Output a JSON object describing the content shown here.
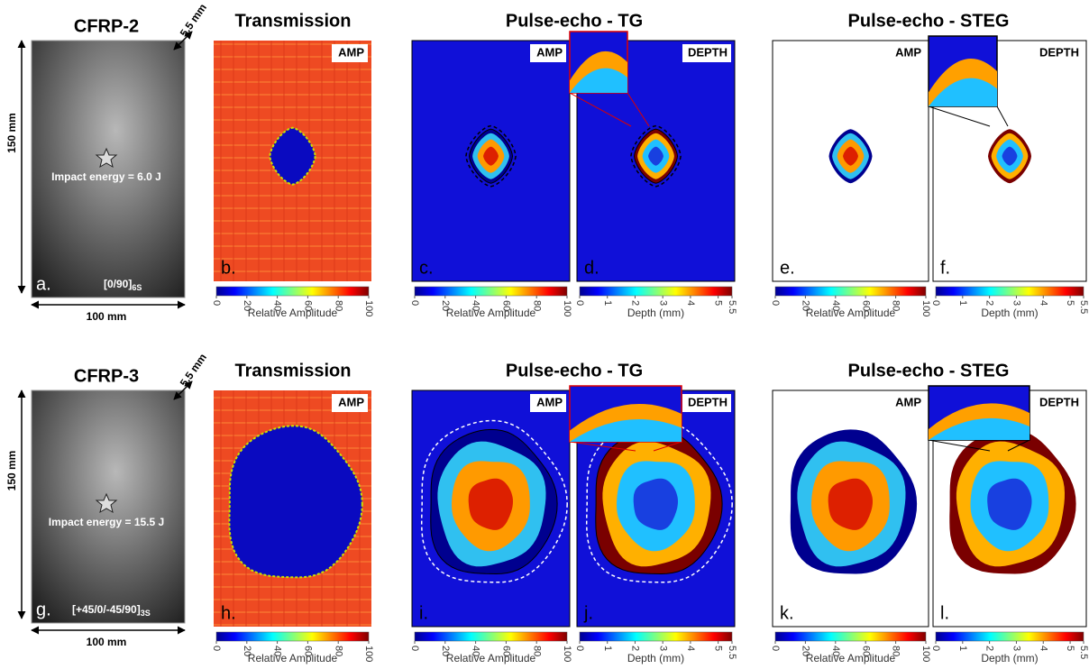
{
  "rows": [
    {
      "sample": "CFRP-2",
      "thickness": "5.5 mm",
      "height": "150 mm",
      "width": "100 mm",
      "impact": "Impact energy = 6.0 J",
      "layup": "[0/90]",
      "layup_sub": "6S",
      "titles": [
        "Transmission",
        "Pulse-echo - TG",
        "Pulse-echo - STEG"
      ],
      "panels": [
        {
          "letter": "a."
        },
        {
          "letter": "b.",
          "tag": "AMP"
        },
        {
          "letter": "c.",
          "tag": "AMP"
        },
        {
          "letter": "d.",
          "tag": "DEPTH"
        },
        {
          "letter": "e.",
          "tag": "AMP"
        },
        {
          "letter": "f.",
          "tag": "DEPTH"
        }
      ]
    },
    {
      "sample": "CFRP-3",
      "thickness": "5.5 mm",
      "height": "150 mm",
      "width": "100 mm",
      "impact": "Impact energy = 15.5 J",
      "layup": "[+45/0/-45/90]",
      "layup_sub": "3S",
      "titles": [
        "Transmission",
        "Pulse-echo - TG",
        "Pulse-echo - STEG"
      ],
      "panels": [
        {
          "letter": "g."
        },
        {
          "letter": "h.",
          "tag": "AMP"
        },
        {
          "letter": "i.",
          "tag": "AMP"
        },
        {
          "letter": "j.",
          "tag": "DEPTH"
        },
        {
          "letter": "k.",
          "tag": "AMP"
        },
        {
          "letter": "l.",
          "tag": "DEPTH"
        }
      ]
    }
  ],
  "colorbars": {
    "AMP": {
      "label": "Relative Amplitude",
      "lim": [
        0,
        100
      ],
      "ticks": [
        0,
        20,
        40,
        60,
        80,
        100
      ]
    },
    "DEPTH": {
      "label": "Depth (mm)",
      "lim": [
        0,
        5.5
      ],
      "ticks": [
        0,
        1,
        2,
        3,
        4,
        5,
        5.5
      ]
    }
  }
}
